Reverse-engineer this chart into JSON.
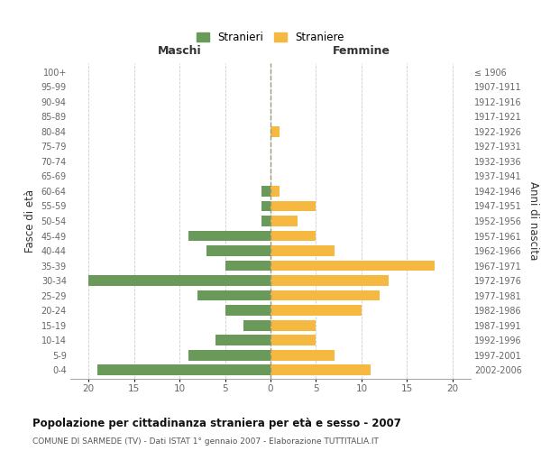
{
  "age_groups": [
    "0-4",
    "5-9",
    "10-14",
    "15-19",
    "20-24",
    "25-29",
    "30-34",
    "35-39",
    "40-44",
    "45-49",
    "50-54",
    "55-59",
    "60-64",
    "65-69",
    "70-74",
    "75-79",
    "80-84",
    "85-89",
    "90-94",
    "95-99",
    "100+"
  ],
  "birth_years": [
    "2002-2006",
    "1997-2001",
    "1992-1996",
    "1987-1991",
    "1982-1986",
    "1977-1981",
    "1972-1976",
    "1967-1971",
    "1962-1966",
    "1957-1961",
    "1952-1956",
    "1947-1951",
    "1942-1946",
    "1937-1941",
    "1932-1936",
    "1927-1931",
    "1922-1926",
    "1917-1921",
    "1912-1916",
    "1907-1911",
    "≤ 1906"
  ],
  "maschi": [
    19,
    9,
    6,
    3,
    5,
    8,
    20,
    5,
    7,
    9,
    1,
    1,
    1,
    0,
    0,
    0,
    0,
    0,
    0,
    0,
    0
  ],
  "femmine": [
    11,
    7,
    5,
    5,
    10,
    12,
    13,
    18,
    7,
    5,
    3,
    5,
    1,
    0,
    0,
    0,
    1,
    0,
    0,
    0,
    0
  ],
  "maschi_color": "#6a9a5a",
  "femmine_color": "#f5b942",
  "title": "Popolazione per cittadinanza straniera per età e sesso - 2007",
  "subtitle": "COMUNE DI SARMEDE (TV) - Dati ISTAT 1° gennaio 2007 - Elaborazione TUTTITALIA.IT",
  "xlabel_left": "Maschi",
  "xlabel_right": "Femmine",
  "ylabel_left": "Fasce di età",
  "ylabel_right": "Anni di nascita",
  "legend_stranieri": "Stranieri",
  "legend_straniere": "Straniere",
  "xlim": 22,
  "background_color": "#ffffff",
  "grid_color": "#cccccc"
}
